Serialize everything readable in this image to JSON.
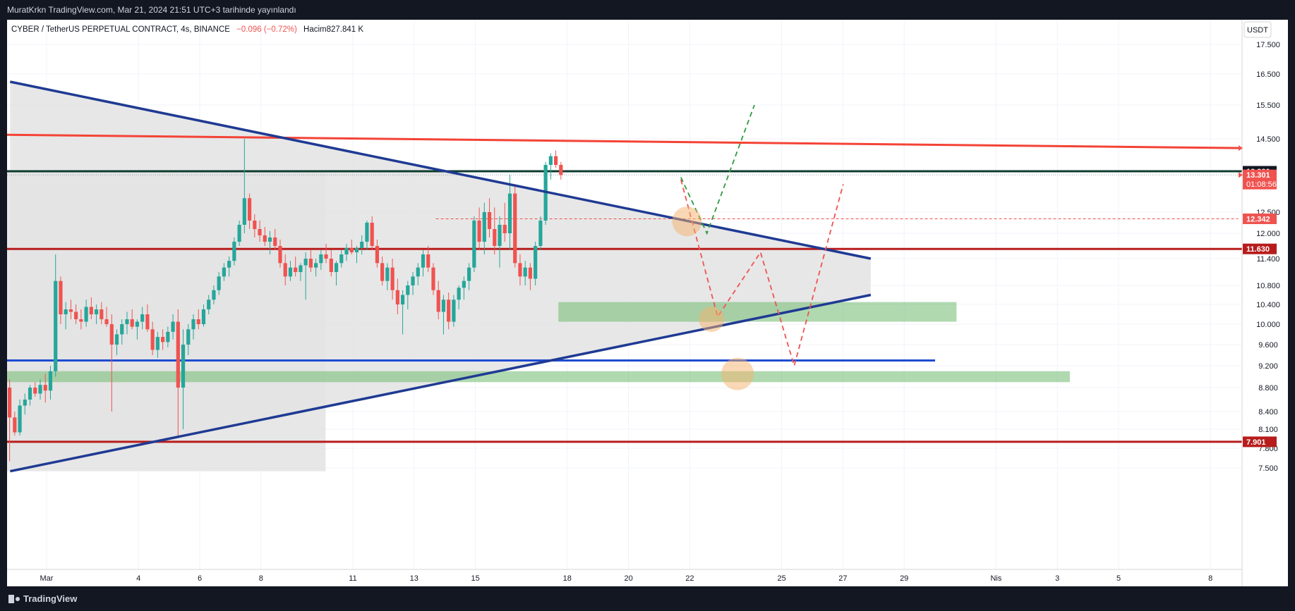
{
  "header": {
    "publish_line": "MuratKrkn TradingView.com, Mar 21, 2024 21:51 UTC+3 tarihinde yayınlandı",
    "symbol": "CYBER / TetherUS PERPETUAL CONTRACT, 4s, BINANCE",
    "change": "−0.096 (−0.72%)",
    "volume": "Hacim827.841 K"
  },
  "footer": {
    "brand": "TradingView"
  },
  "colors": {
    "background": "#131722",
    "panel": "#ffffff",
    "up": "#26a69a",
    "down": "#ef5350",
    "trendline": "#1f3a93",
    "resistance": "#f44336",
    "support_dark": "#b71c1c",
    "blue_line": "#1e4bd2",
    "zone": "#7bbf7b"
  },
  "chart_data": {
    "type": "candlestick",
    "currency": "USDT",
    "y_ticks": [
      "17.500",
      "16.500",
      "15.500",
      "14.500",
      "12.500",
      "12.000",
      "11.400",
      "10.800",
      "10.400",
      "10.000",
      "9.600",
      "9.200",
      "8.800",
      "8.400",
      "8.100",
      "7.800",
      "7.500"
    ],
    "x_ticks": [
      {
        "label": "Mar",
        "day": 1
      },
      {
        "label": "4",
        "day": 4
      },
      {
        "label": "6",
        "day": 6
      },
      {
        "label": "8",
        "day": 8
      },
      {
        "label": "11",
        "day": 11
      },
      {
        "label": "13",
        "day": 13
      },
      {
        "label": "15",
        "day": 15
      },
      {
        "label": "18",
        "day": 18
      },
      {
        "label": "20",
        "day": 20
      },
      {
        "label": "22",
        "day": 22
      },
      {
        "label": "25",
        "day": 25
      },
      {
        "label": "27",
        "day": 27
      },
      {
        "label": "29",
        "day": 29
      },
      {
        "label": "Nis",
        "day": 32
      },
      {
        "label": "3",
        "day": 34
      },
      {
        "label": "5",
        "day": 36
      },
      {
        "label": "8",
        "day": 39
      }
    ],
    "price_labels": [
      {
        "text": "13.380",
        "value": 13.38,
        "bg": "#131722",
        "color": "#ffffff"
      },
      {
        "text": "13.301",
        "value": 13.301,
        "bg": "#ef5350",
        "color": "#ffffff",
        "sub": "01:08:56"
      },
      {
        "text": "12.342",
        "value": 12.342,
        "bg": "#ef5350",
        "color": "#ffffff"
      },
      {
        "text": "11.630",
        "value": 11.63,
        "bg": "#b71c1c",
        "color": "#ffffff"
      },
      {
        "text": "7.901",
        "value": 7.901,
        "bg": "#b71c1c",
        "color": "#ffffff"
      }
    ],
    "horizontal_lines": [
      {
        "value": 11.63,
        "color": "#b71c1c",
        "width": 3
      },
      {
        "value": 7.901,
        "color": "#b71c1c",
        "width": 3
      },
      {
        "value": 13.38,
        "color": "#0d3b2e",
        "width": 3
      },
      {
        "value": 9.3,
        "color": "#1e4bd2",
        "width": 3,
        "x_end_day": 30.3
      }
    ],
    "resistance_line": {
      "from": [
        0.0,
        14.62
      ],
      "to": [
        40.2,
        14.18
      ],
      "color": "#f44336"
    },
    "triangle": {
      "upper": [
        [
          0.1,
          16.25
        ],
        [
          28.2,
          11.4
        ]
      ],
      "lower": [
        [
          0.1,
          7.45
        ],
        [
          28.2,
          10.6
        ]
      ],
      "left_top": [
        0.0,
        13.38
      ],
      "left_bottom": [
        0.0,
        7.45
      ]
    },
    "zones": [
      {
        "day_start": 18.0,
        "day_end": 31.0,
        "low": 10.05,
        "high": 10.45
      },
      {
        "day_start": 0.0,
        "day_end": 34.7,
        "low": 8.9,
        "high": 9.1
      }
    ],
    "dashed_ref": {
      "day_start": 14.0,
      "day_end": 40.2,
      "value": 12.342
    },
    "projections": [
      {
        "color": "#2e9a3e",
        "points": [
          [
            22.0,
            13.25
          ],
          [
            22.85,
            12.0
          ],
          [
            24.4,
            15.5
          ]
        ]
      },
      {
        "color": "#ef5350",
        "points": [
          [
            22.0,
            13.2
          ],
          [
            23.2,
            10.15
          ],
          [
            24.6,
            11.55
          ],
          [
            25.7,
            9.2
          ],
          [
            27.3,
            13.1
          ]
        ]
      }
    ],
    "circles": [
      {
        "day": 22.2,
        "value": 12.28,
        "r": 21
      },
      {
        "day": 23.0,
        "value": 10.1,
        "r": 18
      },
      {
        "day": 23.85,
        "value": 9.05,
        "r": 23
      }
    ],
    "candles_ohlc": [
      [
        8.8,
        8.95,
        7.6,
        8.3
      ],
      [
        8.3,
        8.4,
        8.0,
        8.05
      ],
      [
        8.05,
        8.6,
        8.0,
        8.5
      ],
      [
        8.5,
        8.7,
        8.35,
        8.6
      ],
      [
        8.6,
        8.85,
        8.5,
        8.8
      ],
      [
        8.8,
        8.9,
        8.65,
        8.7
      ],
      [
        8.7,
        8.95,
        8.6,
        8.85
      ],
      [
        8.85,
        9.05,
        8.55,
        8.75
      ],
      [
        8.75,
        9.2,
        8.6,
        9.1
      ],
      [
        9.1,
        11.5,
        9.0,
        10.9
      ],
      [
        10.9,
        11.0,
        10.0,
        10.2
      ],
      [
        10.2,
        10.45,
        9.9,
        10.3
      ],
      [
        10.3,
        10.5,
        10.1,
        10.25
      ],
      [
        10.25,
        10.4,
        10.0,
        10.1
      ],
      [
        10.1,
        10.3,
        9.9,
        10.05
      ],
      [
        10.05,
        10.5,
        9.95,
        10.35
      ],
      [
        10.35,
        10.55,
        10.1,
        10.2
      ],
      [
        10.2,
        10.4,
        10.0,
        10.3
      ],
      [
        10.3,
        10.45,
        10.0,
        10.1
      ],
      [
        10.1,
        10.35,
        9.95,
        10.0
      ],
      [
        10.0,
        10.2,
        8.4,
        9.6
      ],
      [
        9.6,
        9.9,
        9.4,
        9.8
      ],
      [
        9.8,
        10.1,
        9.6,
        10.0
      ],
      [
        10.0,
        10.25,
        9.8,
        10.1
      ],
      [
        10.1,
        10.3,
        9.9,
        9.95
      ],
      [
        9.95,
        10.1,
        9.7,
        10.05
      ],
      [
        10.05,
        10.35,
        9.9,
        10.2
      ],
      [
        10.2,
        10.4,
        9.85,
        9.9
      ],
      [
        9.9,
        10.05,
        9.4,
        9.5
      ],
      [
        9.5,
        9.85,
        9.35,
        9.75
      ],
      [
        9.75,
        9.9,
        9.5,
        9.65
      ],
      [
        9.65,
        9.95,
        9.55,
        9.85
      ],
      [
        9.85,
        10.2,
        9.7,
        10.05
      ],
      [
        10.05,
        10.3,
        8.0,
        8.8
      ],
      [
        8.8,
        9.9,
        8.1,
        9.6
      ],
      [
        9.6,
        10.0,
        9.4,
        9.9
      ],
      [
        9.9,
        10.2,
        9.7,
        10.1
      ],
      [
        10.1,
        10.3,
        9.9,
        10.0
      ],
      [
        10.0,
        10.4,
        9.95,
        10.3
      ],
      [
        10.3,
        10.6,
        10.2,
        10.5
      ],
      [
        10.5,
        10.8,
        10.4,
        10.7
      ],
      [
        10.7,
        11.1,
        10.6,
        11.0
      ],
      [
        11.0,
        11.3,
        10.9,
        11.2
      ],
      [
        11.2,
        11.45,
        11.0,
        11.35
      ],
      [
        11.35,
        11.9,
        11.25,
        11.8
      ],
      [
        11.8,
        12.3,
        11.7,
        12.2
      ],
      [
        12.2,
        14.5,
        12.0,
        12.8
      ],
      [
        12.8,
        12.9,
        12.1,
        12.3
      ],
      [
        12.3,
        12.45,
        11.9,
        12.1
      ],
      [
        12.1,
        12.3,
        11.8,
        11.95
      ],
      [
        11.95,
        12.15,
        11.7,
        11.8
      ],
      [
        11.8,
        12.05,
        11.5,
        11.9
      ],
      [
        11.9,
        12.1,
        11.6,
        11.7
      ],
      [
        11.7,
        11.85,
        11.2,
        11.3
      ],
      [
        11.3,
        11.5,
        10.8,
        11.0
      ],
      [
        11.0,
        11.35,
        10.9,
        11.2
      ],
      [
        11.2,
        11.45,
        11.0,
        11.1
      ],
      [
        11.1,
        11.3,
        10.9,
        11.25
      ],
      [
        11.25,
        11.55,
        10.5,
        11.4
      ],
      [
        11.4,
        11.6,
        11.1,
        11.2
      ],
      [
        11.2,
        11.4,
        11.0,
        11.3
      ],
      [
        11.3,
        11.6,
        11.15,
        11.5
      ],
      [
        11.5,
        11.75,
        11.3,
        11.4
      ],
      [
        11.4,
        11.6,
        11.0,
        11.1
      ],
      [
        11.1,
        11.35,
        10.8,
        11.3
      ],
      [
        11.3,
        11.6,
        11.2,
        11.5
      ],
      [
        11.5,
        11.75,
        11.35,
        11.65
      ],
      [
        11.65,
        11.85,
        11.5,
        11.55
      ],
      [
        11.55,
        11.7,
        11.3,
        11.65
      ],
      [
        11.65,
        11.95,
        11.5,
        11.8
      ],
      [
        11.8,
        12.3,
        11.6,
        12.25
      ],
      [
        12.25,
        12.4,
        11.6,
        11.7
      ],
      [
        11.7,
        11.85,
        11.2,
        11.3
      ],
      [
        11.3,
        11.45,
        10.8,
        10.9
      ],
      [
        10.9,
        11.3,
        10.7,
        11.2
      ],
      [
        11.2,
        11.4,
        10.5,
        10.7
      ],
      [
        10.7,
        10.95,
        10.2,
        10.4
      ],
      [
        10.4,
        10.7,
        9.8,
        10.6
      ],
      [
        10.6,
        10.9,
        10.3,
        10.8
      ],
      [
        10.8,
        11.1,
        10.6,
        11.0
      ],
      [
        11.0,
        11.3,
        10.8,
        11.2
      ],
      [
        11.2,
        11.6,
        11.0,
        11.5
      ],
      [
        11.5,
        11.7,
        11.1,
        11.2
      ],
      [
        11.2,
        11.3,
        10.6,
        10.7
      ],
      [
        10.7,
        10.9,
        10.1,
        10.25
      ],
      [
        10.25,
        10.6,
        9.8,
        10.5
      ],
      [
        10.5,
        10.65,
        9.9,
        10.05
      ],
      [
        10.05,
        10.6,
        9.95,
        10.5
      ],
      [
        10.5,
        10.8,
        10.3,
        10.75
      ],
      [
        10.75,
        11.0,
        10.5,
        10.9
      ],
      [
        10.9,
        11.3,
        10.7,
        11.2
      ],
      [
        11.2,
        12.4,
        11.1,
        12.3
      ],
      [
        12.3,
        12.6,
        11.6,
        11.8
      ],
      [
        11.8,
        12.7,
        11.5,
        12.5
      ],
      [
        12.5,
        12.8,
        11.9,
        12.1
      ],
      [
        12.1,
        12.6,
        11.5,
        11.7
      ],
      [
        11.7,
        12.4,
        11.2,
        12.2
      ],
      [
        12.2,
        12.7,
        11.8,
        12.0
      ],
      [
        12.0,
        13.3,
        11.6,
        12.9
      ],
      [
        12.9,
        13.1,
        11.2,
        11.3
      ],
      [
        11.3,
        11.5,
        10.8,
        11.0
      ],
      [
        11.0,
        11.35,
        10.8,
        11.2
      ],
      [
        11.2,
        11.3,
        10.7,
        10.95
      ],
      [
        10.95,
        11.8,
        10.8,
        11.7
      ],
      [
        11.7,
        12.4,
        11.6,
        12.3
      ],
      [
        12.3,
        13.7,
        12.2,
        13.6
      ],
      [
        13.6,
        14.0,
        13.2,
        13.9
      ],
      [
        13.9,
        14.1,
        13.5,
        13.6
      ],
      [
        13.6,
        13.7,
        13.2,
        13.3
      ]
    ]
  }
}
